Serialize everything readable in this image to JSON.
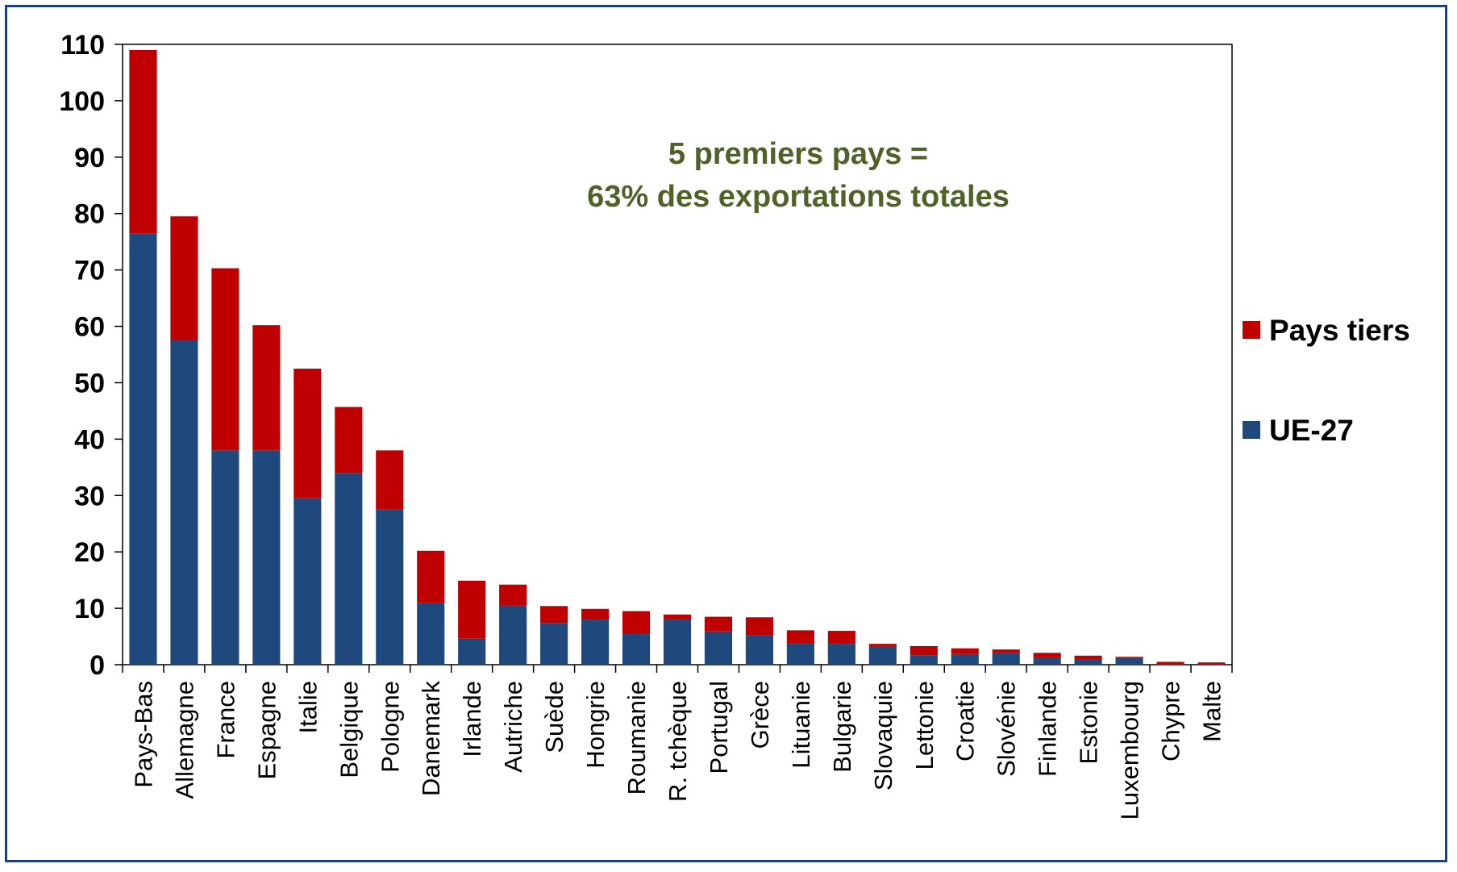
{
  "chart_data": {
    "type": "bar",
    "stacked": true,
    "annotation": [
      "5 premiers pays =",
      "63% des exportations totales"
    ],
    "annotation_color": "#4f6228",
    "ylim": [
      0,
      110
    ],
    "yticks": [
      0,
      10,
      20,
      30,
      40,
      50,
      60,
      70,
      80,
      90,
      100,
      110
    ],
    "legend_position": "right",
    "categories": [
      "Pays-Bas",
      "Allemagne",
      "France",
      "Espagne",
      "Italie",
      "Belgique",
      "Pologne",
      "Danemark",
      "Irlande",
      "Autriche",
      "Suède",
      "Hongrie",
      "Roumanie",
      "R. tchèque",
      "Portugal",
      "Grèce",
      "Lituanie",
      "Bulgarie",
      "Slovaquie",
      "Lettonie",
      "Croatie",
      "Slovénie",
      "Finlande",
      "Estonie",
      "Luxembourg",
      "Chypre",
      "Malte"
    ],
    "series": [
      {
        "name": "UE-27",
        "color": "#1f497d",
        "values": [
          76.5,
          57.5,
          38,
          38,
          29.5,
          34,
          27.5,
          11,
          4.7,
          10.5,
          7.4,
          8,
          5.5,
          8,
          5.9,
          5.2,
          3.8,
          3.7,
          3.3,
          1.7,
          1.9,
          2.1,
          1.3,
          1,
          1.2,
          0.1,
          0.1
        ]
      },
      {
        "name": "Pays tiers",
        "color": "#c00000",
        "values": [
          32.5,
          22,
          32.3,
          22.2,
          23,
          11.7,
          10.5,
          9.2,
          10.2,
          3.7,
          3,
          1.9,
          4,
          0.9,
          2.6,
          3.2,
          2.3,
          2.3,
          0.4,
          1.6,
          1,
          0.6,
          0.8,
          0.6,
          0.2,
          0.4,
          0.3
        ]
      }
    ]
  }
}
